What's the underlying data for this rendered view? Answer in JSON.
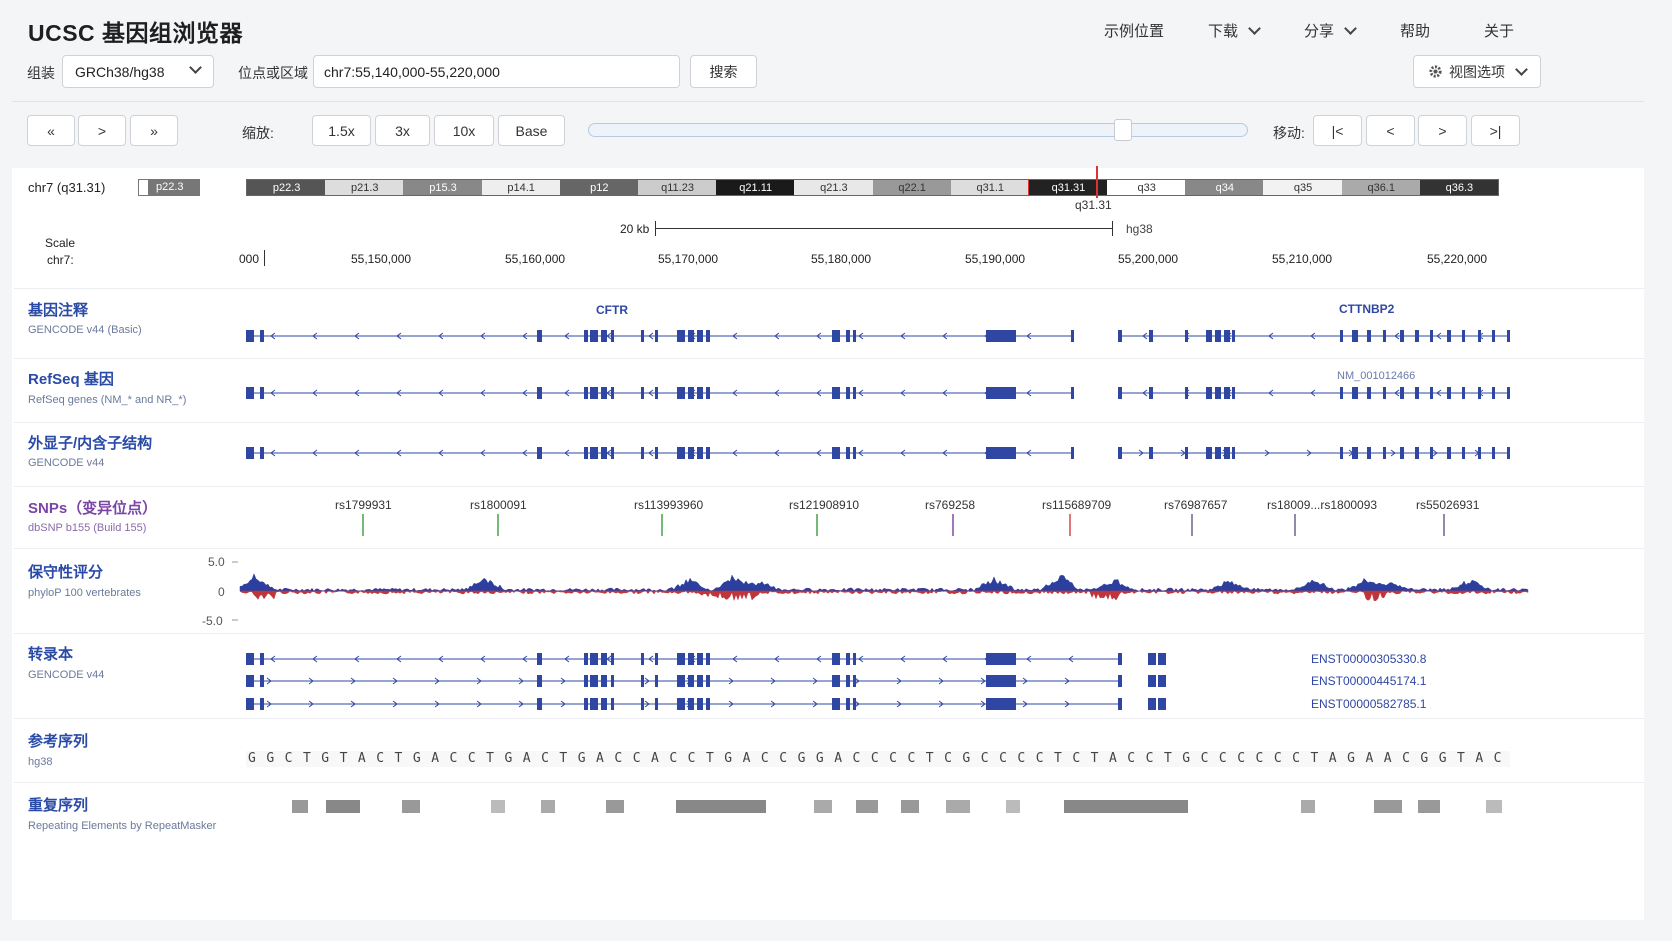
{
  "app": {
    "title": "UCSC 基因组浏览器"
  },
  "nav": {
    "examples": "示例位置",
    "download": "下载",
    "share": "分享",
    "help": "帮助",
    "about": "关于"
  },
  "controls": {
    "assembly_label": "组装",
    "assembly_value": "GRCh38/hg38",
    "position_label": "位点或区域",
    "position_value": "chr7:55,140,000-55,220,000",
    "search_label": "搜索",
    "view_options": "视图选项",
    "zoom_label": "缩放:",
    "zoom": [
      "1.5x",
      "3x",
      "10x",
      "Base"
    ],
    "move_label": "移动:",
    "nav_buttons": [
      "«",
      ">",
      "»"
    ],
    "move_buttons": [
      "|<",
      "<",
      ">",
      ">|"
    ],
    "zoom_slider_value": 0.82
  },
  "ideogram": {
    "chrom_label": "chr7 (q31.31)",
    "mini_band": "p22.3",
    "bands": [
      "p22.3",
      "p21.3",
      "p15.3",
      "p14.1",
      "p12",
      "q11.23",
      "q21.11",
      "q21.3",
      "q22.1",
      "q31.1",
      "q31.31",
      "q33",
      "q34",
      "q35",
      "q36.1",
      "q36.3"
    ],
    "current_band": "q31.31",
    "scale_label": "20 kb",
    "assembly": "hg38"
  },
  "ruler": {
    "scale_title": "Scale",
    "chrom_prefix": "chr7:",
    "ticks": [
      "000",
      "55,150,000",
      "55,160,000",
      "55,170,000",
      "55,180,000",
      "55,190,000",
      "55,200,000",
      "55,210,000",
      "55,220,000"
    ]
  },
  "tracks": {
    "genes": {
      "title": "基因注释",
      "sub": "GENCODE v44 (Basic)",
      "labels": [
        "CFTR",
        "CTTNBP2"
      ]
    },
    "refseq": {
      "title": "RefSeq 基因",
      "sub": "RefSeq genes (NM_* and NR_*)",
      "labels": [
        "NM_001012466"
      ]
    },
    "exons": {
      "title": "外显子/内含子结构",
      "sub": "GENCODE v44"
    },
    "snps": {
      "title": "SNPs（变异位点）",
      "sub": "dbSNP b155 (Build 155)",
      "items": [
        {
          "id": "rs1799931",
          "color": "#3b9b3b"
        },
        {
          "id": "rs1800091",
          "color": "#3b9b3b"
        },
        {
          "id": "rs113993960",
          "color": "#3b9b3b"
        },
        {
          "id": "rs121908910",
          "color": "#3b9b3b"
        },
        {
          "id": "rs769258",
          "color": "#7a3fa0"
        },
        {
          "id": "rs115689709",
          "color": "#d23c3c"
        },
        {
          "id": "rs76987657",
          "color": "#5a5a8a"
        },
        {
          "id": "rs18009...rs1800093",
          "color": "#5a5a8a"
        },
        {
          "id": "rs55026931",
          "color": "#5a5a8a"
        }
      ]
    },
    "conservation": {
      "title": "保守性评分",
      "sub": "phyloP 100 vertebrates",
      "ymax": "5.0",
      "yzero": "0",
      "ymin": "-5.0"
    },
    "transcripts": {
      "title": "转录本",
      "sub": "GENCODE v44",
      "ids": [
        "ENST00000305330.8",
        "ENST00000445174.1",
        "ENST00000582785.1"
      ]
    },
    "refseq_seq": {
      "title": "参考序列",
      "sub": "hg38",
      "sequence": "GGCTGTACTGACCTGACTGACCACCTGACCGGACCCCTCGCCCCTCTACCTGCCCCCCTAGAACGGTAC"
    },
    "repeats": {
      "title": "重复序列",
      "sub": "Repeating Elements by RepeatMasker"
    }
  },
  "colors": {
    "gene": "#2f47a3",
    "cons_pos": "#2c3f9e",
    "cons_neg": "#c0353a",
    "accent": "#2a4aa8"
  }
}
